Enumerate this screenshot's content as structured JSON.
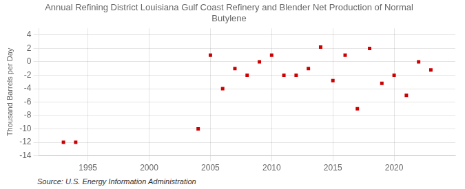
{
  "chart_data": {
    "type": "scatter",
    "title": "Annual Refining District Louisiana Gulf Coast Refinery and Blender Net Production of Normal\nButylene",
    "y_label": "Thousand Barrels per Day",
    "annotation": "Source: U.S. Energy Information Administration",
    "x": [
      1993,
      1994,
      2004,
      2005,
      2006,
      2007,
      2008,
      2009,
      2010,
      2011,
      2012,
      2013,
      2014,
      2015,
      2016,
      2017,
      2018,
      2019,
      2020,
      2021,
      2022,
      2023
    ],
    "values": [
      -12.0,
      -12.0,
      -10.0,
      1.0,
      -4.0,
      -1.0,
      -2.0,
      0.0,
      1.0,
      -2.0,
      -2.0,
      -1.0,
      2.2,
      -2.8,
      1.0,
      -7.0,
      2.0,
      -3.2,
      -2.0,
      -5.0,
      0.0,
      -1.2
    ],
    "color": "#cc0000",
    "marker": "square",
    "xlim": [
      1991,
      2025
    ],
    "xticks": [
      1995,
      2000,
      2005,
      2010,
      2015,
      2020
    ],
    "ylim": [
      -14,
      5
    ],
    "yticks": [
      -14,
      -12,
      -10,
      -8,
      -6,
      -4,
      -2,
      0,
      2,
      4
    ],
    "grid": true
  }
}
